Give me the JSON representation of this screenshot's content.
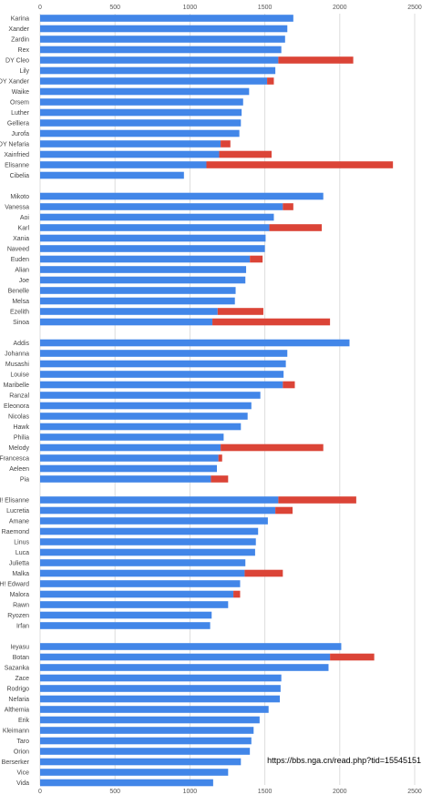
{
  "watermark": "https://bbs.nga.cn/read.php?tid=15545151",
  "chart_data": {
    "type": "bar",
    "orientation": "horizontal",
    "stacked": true,
    "xlim": [
      0,
      2500
    ],
    "x_ticks": [
      0,
      500,
      1000,
      1500,
      2000,
      2500
    ],
    "grid": true,
    "colors": {
      "base": "#4286e8",
      "bonus": "#db4437"
    },
    "groups": [
      {
        "items": [
          {
            "name": "Karina",
            "base": 1690,
            "bonus": 0
          },
          {
            "name": "Xander",
            "base": 1650,
            "bonus": 0
          },
          {
            "name": "Zardin",
            "base": 1635,
            "bonus": 0
          },
          {
            "name": "Rex",
            "base": 1610,
            "bonus": 0
          },
          {
            "name": "DY Cleo",
            "base": 1590,
            "bonus": 500
          },
          {
            "name": "Lily",
            "base": 1570,
            "bonus": 0
          },
          {
            "name": "DY Xander",
            "base": 1515,
            "bonus": 45
          },
          {
            "name": "Waike",
            "base": 1395,
            "bonus": 0
          },
          {
            "name": "Orsem",
            "base": 1355,
            "bonus": 0
          },
          {
            "name": "Luther",
            "base": 1345,
            "bonus": 0
          },
          {
            "name": "Gelliera",
            "base": 1340,
            "bonus": 0
          },
          {
            "name": "Jurofa",
            "base": 1330,
            "bonus": 0
          },
          {
            "name": "DY Nefaria",
            "base": 1205,
            "bonus": 65
          },
          {
            "name": "Xainfried",
            "base": 1195,
            "bonus": 350
          },
          {
            "name": "Elisanne",
            "base": 1110,
            "bonus": 1245
          },
          {
            "name": "Cibelia",
            "base": 960,
            "bonus": 0
          }
        ]
      },
      {
        "items": [
          {
            "name": "Mikoto",
            "base": 1890,
            "bonus": 0
          },
          {
            "name": "Vanessa",
            "base": 1620,
            "bonus": 70
          },
          {
            "name": "Aoi",
            "base": 1560,
            "bonus": 0
          },
          {
            "name": "Karl",
            "base": 1530,
            "bonus": 350
          },
          {
            "name": "Xania",
            "base": 1505,
            "bonus": 0
          },
          {
            "name": "Naveed",
            "base": 1500,
            "bonus": 0
          },
          {
            "name": "Euden",
            "base": 1400,
            "bonus": 85
          },
          {
            "name": "Alian",
            "base": 1375,
            "bonus": 0
          },
          {
            "name": "Joe",
            "base": 1370,
            "bonus": 0
          },
          {
            "name": "Benelle",
            "base": 1305,
            "bonus": 0
          },
          {
            "name": "Melsa",
            "base": 1300,
            "bonus": 0
          },
          {
            "name": "Ezelith",
            "base": 1185,
            "bonus": 305
          },
          {
            "name": "Sinoa",
            "base": 1150,
            "bonus": 785
          }
        ]
      },
      {
        "items": [
          {
            "name": "Addis",
            "base": 2065,
            "bonus": 0
          },
          {
            "name": "Johanna",
            "base": 1650,
            "bonus": 0
          },
          {
            "name": "Musashi",
            "base": 1640,
            "bonus": 0
          },
          {
            "name": "Louise",
            "base": 1625,
            "bonus": 0
          },
          {
            "name": "Maribelle",
            "base": 1620,
            "bonus": 80
          },
          {
            "name": "Ranzal",
            "base": 1470,
            "bonus": 0
          },
          {
            "name": "Eleonora",
            "base": 1410,
            "bonus": 0
          },
          {
            "name": "Nicolas",
            "base": 1385,
            "bonus": 0
          },
          {
            "name": "Hawk",
            "base": 1340,
            "bonus": 0
          },
          {
            "name": "Philia",
            "base": 1225,
            "bonus": 0
          },
          {
            "name": "Melody",
            "base": 1205,
            "bonus": 685
          },
          {
            "name": "Francesca",
            "base": 1190,
            "bonus": 25
          },
          {
            "name": "Aeleen",
            "base": 1180,
            "bonus": 0
          },
          {
            "name": "Pia",
            "base": 1140,
            "bonus": 115
          }
        ]
      },
      {
        "items": [
          {
            "name": "H! Elisanne",
            "base": 1590,
            "bonus": 520
          },
          {
            "name": "Lucretia",
            "base": 1570,
            "bonus": 115
          },
          {
            "name": "Amane",
            "base": 1520,
            "bonus": 0
          },
          {
            "name": "Raemond",
            "base": 1455,
            "bonus": 0
          },
          {
            "name": "Linus",
            "base": 1440,
            "bonus": 0
          },
          {
            "name": "Luca",
            "base": 1435,
            "bonus": 0
          },
          {
            "name": "Julietta",
            "base": 1370,
            "bonus": 0
          },
          {
            "name": "Malka",
            "base": 1365,
            "bonus": 255
          },
          {
            "name": "H! Edward",
            "base": 1335,
            "bonus": 0
          },
          {
            "name": "Malora",
            "base": 1290,
            "bonus": 45
          },
          {
            "name": "Rawn",
            "base": 1255,
            "bonus": 0
          },
          {
            "name": "Ryozen",
            "base": 1145,
            "bonus": 0
          },
          {
            "name": "Irfan",
            "base": 1135,
            "bonus": 0
          }
        ]
      },
      {
        "items": [
          {
            "name": "Ieyasu",
            "base": 2010,
            "bonus": 0
          },
          {
            "name": "Botan",
            "base": 1935,
            "bonus": 295
          },
          {
            "name": "Sazanka",
            "base": 1925,
            "bonus": 0
          },
          {
            "name": "Zace",
            "base": 1610,
            "bonus": 0
          },
          {
            "name": "Rodrigo",
            "base": 1605,
            "bonus": 0
          },
          {
            "name": "Nefaria",
            "base": 1600,
            "bonus": 0
          },
          {
            "name": "Althemia",
            "base": 1525,
            "bonus": 0
          },
          {
            "name": "Erik",
            "base": 1465,
            "bonus": 0
          },
          {
            "name": "Kleimann",
            "base": 1425,
            "bonus": 0
          },
          {
            "name": "Taro",
            "base": 1410,
            "bonus": 0
          },
          {
            "name": "Orion",
            "base": 1400,
            "bonus": 0
          },
          {
            "name": "Berserker",
            "base": 1340,
            "bonus": 0
          },
          {
            "name": "Vice",
            "base": 1255,
            "bonus": 0
          },
          {
            "name": "Vida",
            "base": 1155,
            "bonus": 0
          }
        ]
      }
    ]
  }
}
